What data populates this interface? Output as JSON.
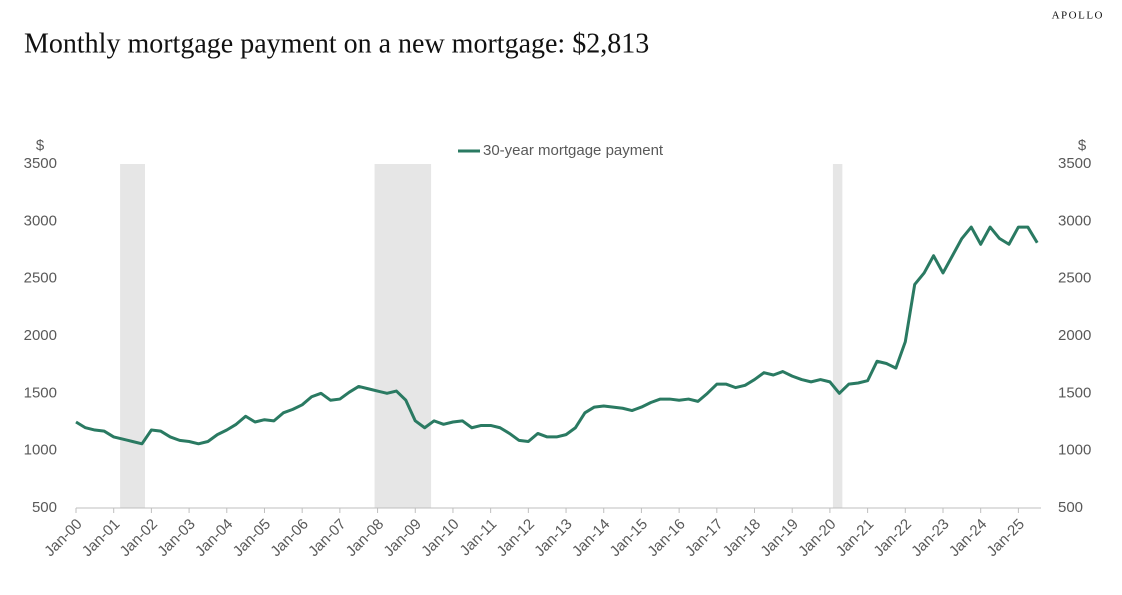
{
  "brand": "APOLLO",
  "chart_data": {
    "type": "line",
    "title": "Monthly mortgage payment on a new mortgage: $2,813",
    "y_label": "$",
    "y2_label": "$",
    "legend": "top",
    "shaded_ranges": [
      [
        2001.17,
        2001.83
      ],
      [
        2007.92,
        2009.42
      ],
      [
        2020.08,
        2020.33
      ]
    ],
    "x": [
      2000,
      2000.25,
      2000.5,
      2000.75,
      2001,
      2001.25,
      2001.5,
      2001.75,
      2002,
      2002.25,
      2002.5,
      2002.75,
      2003,
      2003.25,
      2003.5,
      2003.75,
      2004,
      2004.25,
      2004.5,
      2004.75,
      2005,
      2005.25,
      2005.5,
      2005.75,
      2006,
      2006.25,
      2006.5,
      2006.75,
      2007,
      2007.25,
      2007.5,
      2007.75,
      2008,
      2008.25,
      2008.5,
      2008.75,
      2009,
      2009.25,
      2009.5,
      2009.75,
      2010,
      2010.25,
      2010.5,
      2010.75,
      2011,
      2011.25,
      2011.5,
      2011.75,
      2012,
      2012.25,
      2012.5,
      2012.75,
      2013,
      2013.25,
      2013.5,
      2013.75,
      2014,
      2014.25,
      2014.5,
      2014.75,
      2015,
      2015.25,
      2015.5,
      2015.75,
      2016,
      2016.25,
      2016.5,
      2016.75,
      2017,
      2017.25,
      2017.5,
      2017.75,
      2018,
      2018.25,
      2018.5,
      2018.75,
      2019,
      2019.25,
      2019.5,
      2019.75,
      2020,
      2020.25,
      2020.5,
      2020.75,
      2021,
      2021.25,
      2021.5,
      2021.75,
      2022,
      2022.25,
      2022.5,
      2022.75,
      2023,
      2023.25,
      2023.5,
      2023.75,
      2024,
      2024.25,
      2024.5,
      2024.75,
      2025,
      2025.25,
      2025.5
    ],
    "series": [
      {
        "name": "30-year mortgage payment",
        "color": "#2a7a62",
        "values": [
          1250,
          1200,
          1180,
          1170,
          1120,
          1100,
          1080,
          1060,
          1180,
          1170,
          1120,
          1090,
          1080,
          1060,
          1080,
          1140,
          1180,
          1230,
          1300,
          1250,
          1270,
          1260,
          1330,
          1360,
          1400,
          1470,
          1500,
          1440,
          1450,
          1510,
          1560,
          1540,
          1520,
          1500,
          1520,
          1440,
          1260,
          1200,
          1260,
          1230,
          1250,
          1260,
          1200,
          1220,
          1220,
          1200,
          1150,
          1090,
          1080,
          1150,
          1120,
          1120,
          1140,
          1200,
          1330,
          1380,
          1390,
          1380,
          1370,
          1350,
          1380,
          1420,
          1450,
          1450,
          1440,
          1450,
          1430,
          1500,
          1580,
          1580,
          1550,
          1570,
          1620,
          1680,
          1660,
          1690,
          1650,
          1620,
          1600,
          1620,
          1600,
          1500,
          1580,
          1590,
          1610,
          1780,
          1760,
          1720,
          1950,
          2450,
          2550,
          2700,
          2550,
          2700,
          2850,
          2950,
          2800,
          2950,
          2850,
          2800,
          2950,
          2950,
          2813
        ]
      }
    ],
    "xlim": [
      2000,
      2025.6
    ],
    "xticks": [
      {
        "value": 2000,
        "label": "Jan-00"
      },
      {
        "value": 2001,
        "label": "Jan-01"
      },
      {
        "value": 2002,
        "label": "Jan-02"
      },
      {
        "value": 2003,
        "label": "Jan-03"
      },
      {
        "value": 2004,
        "label": "Jan-04"
      },
      {
        "value": 2005,
        "label": "Jan-05"
      },
      {
        "value": 2006,
        "label": "Jan-06"
      },
      {
        "value": 2007,
        "label": "Jan-07"
      },
      {
        "value": 2008,
        "label": "Jan-08"
      },
      {
        "value": 2009,
        "label": "Jan-09"
      },
      {
        "value": 2010,
        "label": "Jan-10"
      },
      {
        "value": 2011,
        "label": "Jan-11"
      },
      {
        "value": 2012,
        "label": "Jan-12"
      },
      {
        "value": 2013,
        "label": "Jan-13"
      },
      {
        "value": 2014,
        "label": "Jan-14"
      },
      {
        "value": 2015,
        "label": "Jan-15"
      },
      {
        "value": 2016,
        "label": "Jan-16"
      },
      {
        "value": 2017,
        "label": "Jan-17"
      },
      {
        "value": 2018,
        "label": "Jan-18"
      },
      {
        "value": 2019,
        "label": "Jan-19"
      },
      {
        "value": 2020,
        "label": "Jan-20"
      },
      {
        "value": 2021,
        "label": "Jan-21"
      },
      {
        "value": 2022,
        "label": "Jan-22"
      },
      {
        "value": 2023,
        "label": "Jan-23"
      },
      {
        "value": 2024,
        "label": "Jan-24"
      },
      {
        "value": 2025,
        "label": "Jan-25"
      }
    ],
    "ylim": [
      500,
      3500
    ],
    "yticks": [
      500,
      1000,
      1500,
      2000,
      2500,
      3000,
      3500
    ],
    "y2lim": [
      500,
      3500
    ],
    "y2ticks": [
      500,
      1000,
      1500,
      2000,
      2500,
      3000,
      3500
    ]
  }
}
